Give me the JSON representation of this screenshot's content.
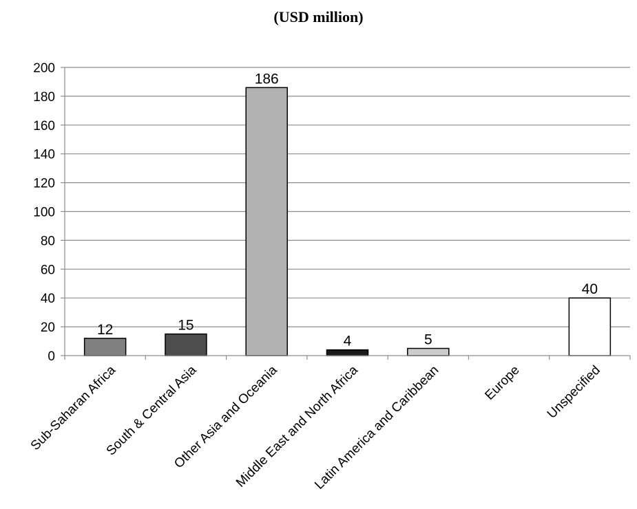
{
  "chart_data": {
    "type": "bar",
    "title": "(USD million)",
    "categories": [
      "Sub-Saharan Africa",
      "South & Central Asia",
      "Other Asia and Oceania",
      "Middle East and North Africa",
      "Latin America and Caribbean",
      "Europe",
      "Unspecified"
    ],
    "values": [
      12,
      15,
      186,
      4,
      5,
      0,
      40
    ],
    "data_labels": [
      "12",
      "15",
      "186",
      "4",
      "5",
      "",
      "40"
    ],
    "bar_colors": [
      "#808080",
      "#4d4d4d",
      "#b3b3b3",
      "#1a1a1a",
      "#cccccc",
      "#ffffff",
      "#ffffff"
    ],
    "ylim": [
      0,
      200
    ],
    "yticks": [
      0,
      20,
      40,
      60,
      80,
      100,
      120,
      140,
      160,
      180,
      200
    ],
    "grid": true,
    "legend": "none",
    "xlabel": "",
    "ylabel": ""
  }
}
